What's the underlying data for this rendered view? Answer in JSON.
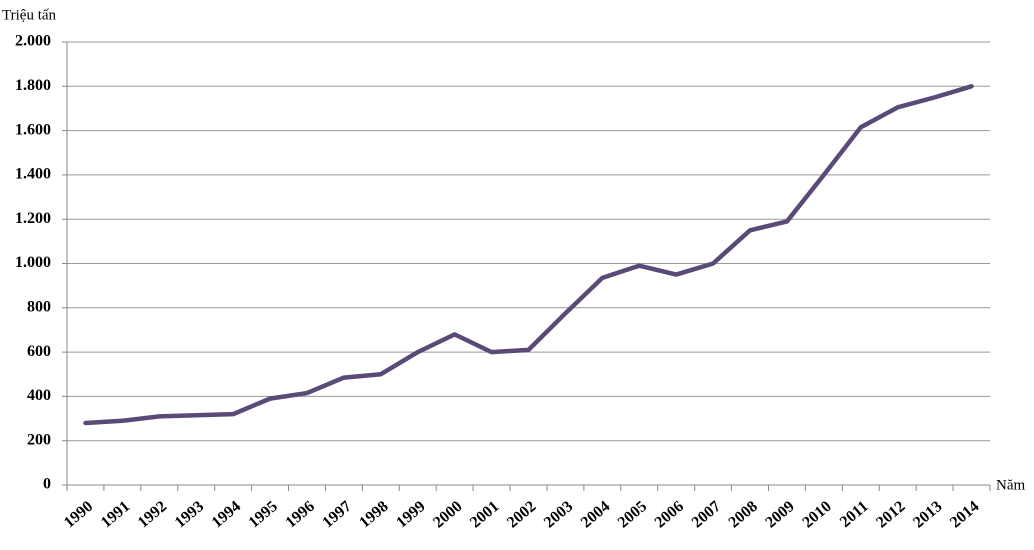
{
  "chart_data": {
    "type": "line",
    "y_axis_label": "Triệu tấn",
    "x_axis_label": "Năm",
    "categories": [
      "1990",
      "1991",
      "1992",
      "1993",
      "1994",
      "1995",
      "1996",
      "1997",
      "1998",
      "1999",
      "2000",
      "2001",
      "2002",
      "2003",
      "2004",
      "2005",
      "2006",
      "2007",
      "2008",
      "2009",
      "2010",
      "2011",
      "2012",
      "2013",
      "2014"
    ],
    "values": [
      280,
      290,
      310,
      315,
      320,
      390,
      415,
      485,
      500,
      600,
      680,
      600,
      610,
      775,
      935,
      990,
      950,
      1000,
      1150,
      1190,
      1400,
      1615,
      1705,
      1750,
      1800
    ],
    "color": "#5a4a78",
    "ylim": [
      0,
      2000
    ],
    "yticks": [
      0,
      200,
      400,
      600,
      800,
      {
        "value": 1000,
        "label": "1.000"
      },
      {
        "value": 1200,
        "label": "1.200"
      },
      {
        "value": 1400,
        "label": "1.400"
      },
      {
        "value": 1600,
        "label": "1.600"
      },
      {
        "value": 1800,
        "label": "1.800"
      },
      {
        "value": 2000,
        "label": "2.000"
      }
    ],
    "grid": true
  }
}
